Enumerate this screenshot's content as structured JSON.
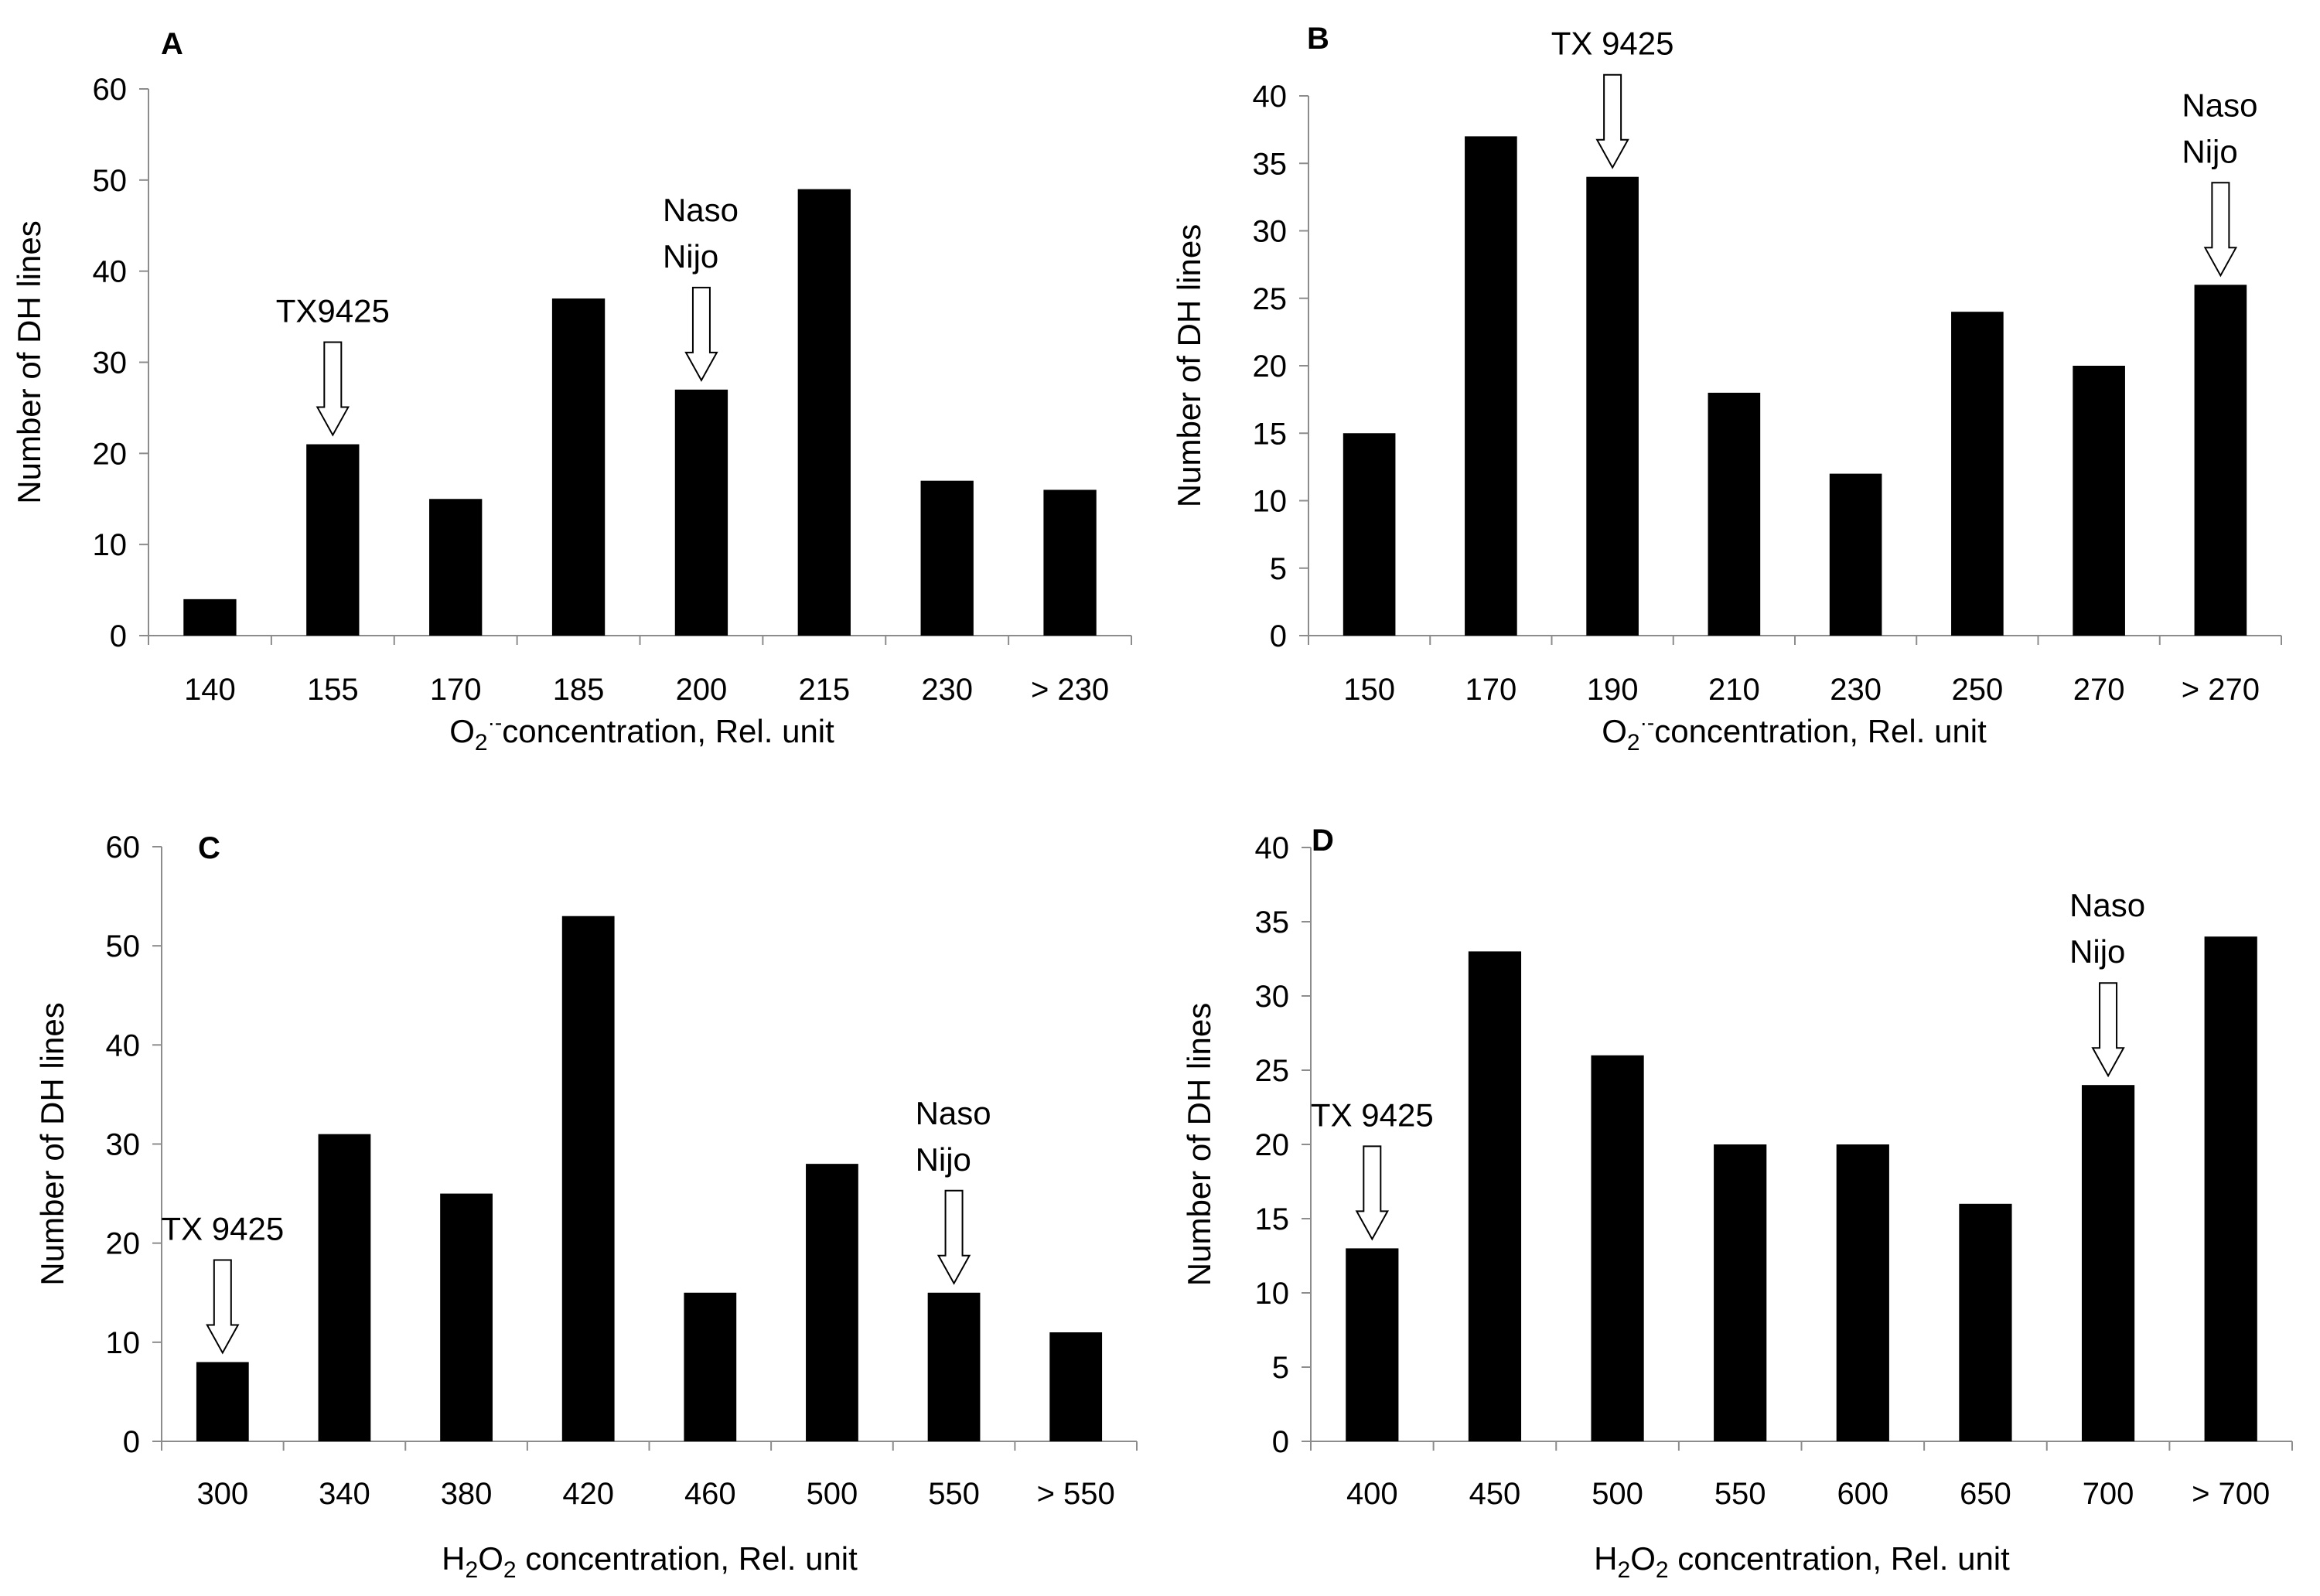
{
  "chart_data": [
    {
      "panel": "A",
      "type": "bar",
      "categories": [
        "140",
        "155",
        "170",
        "185",
        "200",
        "215",
        "230",
        "> 230"
      ],
      "values": [
        4,
        21,
        15,
        37,
        27,
        49,
        17,
        16
      ],
      "ylim": [
        0,
        60
      ],
      "yticks": [
        0,
        10,
        20,
        30,
        40,
        50,
        60
      ],
      "ylabel": "Number of DH lines",
      "xlabel": {
        "base": "O",
        "sub": "2",
        "sup": "·-",
        "rest": "concentration, Rel. unit"
      },
      "annotations": [
        {
          "lines": [
            "TX9425"
          ],
          "category_index": 1
        },
        {
          "lines": [
            "Naso",
            "Nijo"
          ],
          "category_index": 4
        }
      ]
    },
    {
      "panel": "B",
      "type": "bar",
      "categories": [
        "150",
        "170",
        "190",
        "210",
        "230",
        "250",
        "270",
        "> 270"
      ],
      "values": [
        15,
        37,
        34,
        18,
        12,
        24,
        20,
        26
      ],
      "ylim": [
        0,
        40
      ],
      "yticks": [
        0,
        5,
        10,
        15,
        20,
        25,
        30,
        35,
        40
      ],
      "ylabel": "Number of DH lines",
      "xlabel": {
        "base": "O",
        "sub": "2",
        "sup": "·-",
        "rest": "concentration, Rel. unit"
      },
      "annotations": [
        {
          "lines": [
            "TX 9425"
          ],
          "category_index": 2
        },
        {
          "lines": [
            "Naso",
            "Nijo"
          ],
          "category_index": 7
        }
      ]
    },
    {
      "panel": "C",
      "type": "bar",
      "categories": [
        "300",
        "340",
        "380",
        "420",
        "460",
        "500",
        "550",
        "> 550"
      ],
      "values": [
        8,
        31,
        25,
        53,
        15,
        28,
        15,
        11
      ],
      "ylim": [
        0,
        60
      ],
      "yticks": [
        0,
        10,
        20,
        30,
        40,
        50,
        60
      ],
      "ylabel": "Number of DH lines",
      "xlabel": {
        "base": "H",
        "sub": "2",
        "base2": "O",
        "sub2": "2",
        "rest": " concentration, Rel. unit"
      },
      "annotations": [
        {
          "lines": [
            "TX 9425"
          ],
          "category_index": 0
        },
        {
          "lines": [
            "Naso",
            "Nijo"
          ],
          "category_index": 6
        }
      ]
    },
    {
      "panel": "D",
      "type": "bar",
      "categories": [
        "400",
        "450",
        "500",
        "550",
        "600",
        "650",
        "700",
        "> 700"
      ],
      "values": [
        13,
        33,
        26,
        20,
        20,
        16,
        24,
        34
      ],
      "ylim": [
        0,
        40
      ],
      "yticks": [
        0,
        5,
        10,
        15,
        20,
        25,
        30,
        35,
        40
      ],
      "ylabel": "Number of DH lines",
      "xlabel": {
        "base": "H",
        "sub": "2",
        "base2": "O",
        "sub2": "2",
        "rest": " concentration, Rel. unit"
      },
      "annotations": [
        {
          "lines": [
            "TX 9425"
          ],
          "category_index": 0
        },
        {
          "lines": [
            "Naso",
            "Nijo"
          ],
          "category_index": 6
        }
      ]
    }
  ]
}
